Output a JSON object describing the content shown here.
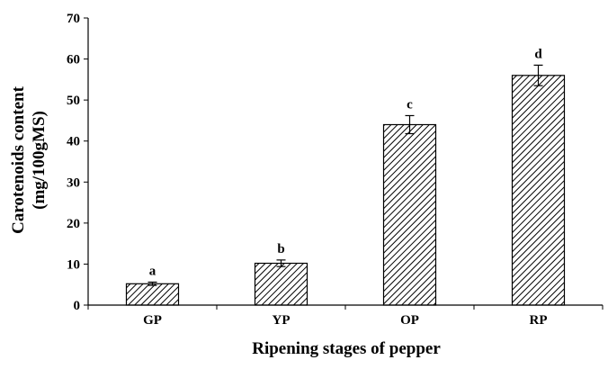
{
  "chart_data": {
    "type": "bar",
    "categories": [
      "GP",
      "YP",
      "OP",
      "RP"
    ],
    "values": [
      5.2,
      10.2,
      44.0,
      56.0
    ],
    "errors": [
      0.4,
      0.8,
      2.2,
      2.5
    ],
    "significance_labels": [
      "a",
      "b",
      "c",
      "d"
    ],
    "xlabel": "Ripening stages of pepper",
    "ylabel_line1": "Carotenoids content",
    "ylabel_line2": "(mg/100gMS)",
    "ylim": [
      0,
      70
    ],
    "yticks": [
      0,
      10,
      20,
      30,
      40,
      50,
      60,
      70
    ],
    "grid": false,
    "bar_fill": "diagonal-hatch",
    "bar_color": "#000000"
  }
}
